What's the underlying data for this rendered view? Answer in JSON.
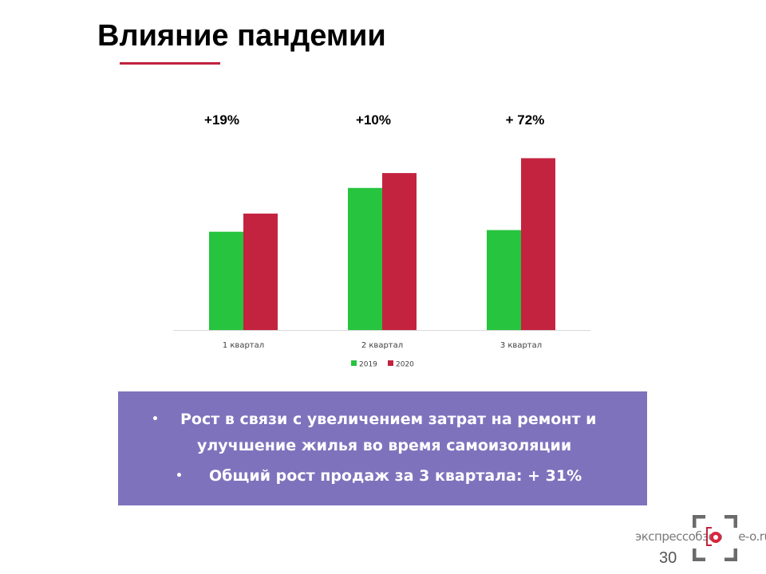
{
  "slide": {
    "title": "Влияние пандемии",
    "page_number": "30",
    "accent_color": "#c0223f"
  },
  "growth_labels": [
    "+19%",
    "+10%",
    "+ 72%"
  ],
  "chart_data": {
    "type": "bar",
    "title": "",
    "xlabel": "",
    "ylabel": "",
    "categories": [
      "1 квартал",
      "2 квартал",
      "3 квартал"
    ],
    "series": [
      {
        "name": "2019",
        "color": "#27c43f",
        "values": [
          119,
          172,
          121
        ]
      },
      {
        "name": "2020",
        "color": "#c42340",
        "values": [
          141,
          190,
          208
        ]
      }
    ],
    "ylim": [
      0,
      220
    ],
    "grid": false,
    "legend_position": "bottom"
  },
  "info_box": {
    "background": "#7f72bd",
    "bullets": [
      {
        "line1": "Рост в связи с увеличением затрат на ремонт и",
        "line2": "улучшение жилья во время самоизоляции"
      },
      {
        "line1": "Общий рост продаж за 3 квартала: + 31%",
        "line2": ""
      }
    ]
  },
  "logo": {
    "text": "экспрессобзор",
    "domain": "e-o.ru",
    "icon": "camera-frame-logo-icon"
  }
}
